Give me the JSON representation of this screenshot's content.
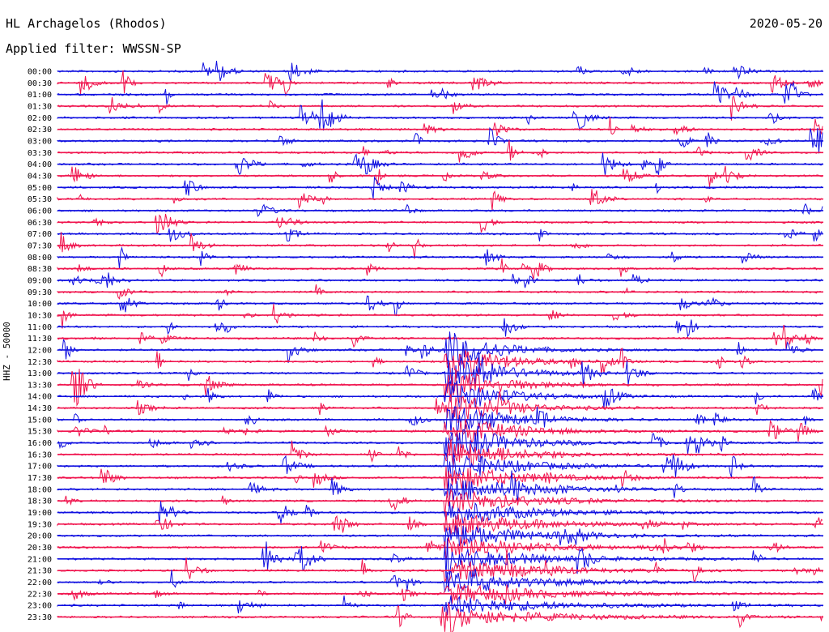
{
  "header": {
    "station": "HL Archagelos (Rhodos)",
    "filter": "Applied filter: WWSSN-SP",
    "date": "2020-05-20"
  },
  "chart_data": {
    "type": "line",
    "ylabel": "HHZ - 50000",
    "colors": [
      "#1010e0",
      "#f0144e"
    ],
    "time_labels": [
      "00:00",
      "00:30",
      "01:00",
      "01:30",
      "02:00",
      "02:30",
      "03:00",
      "03:30",
      "04:00",
      "04:30",
      "05:00",
      "05:30",
      "06:00",
      "06:30",
      "07:00",
      "07:30",
      "08:00",
      "08:30",
      "09:00",
      "09:30",
      "10:00",
      "10:30",
      "11:00",
      "11:30",
      "12:00",
      "12:30",
      "13:00",
      "13:30",
      "14:00",
      "14:30",
      "15:00",
      "15:30",
      "16:00",
      "16:30",
      "17:00",
      "17:30",
      "18:00",
      "18:30",
      "19:00",
      "19:30",
      "20:00",
      "20:30",
      "21:00",
      "21:30",
      "22:00",
      "22:30",
      "23:00",
      "23:30"
    ],
    "major_event": {
      "label": "large earthquake with long coda",
      "start_row": 24,
      "start_x_frac": 0.505
    }
  }
}
